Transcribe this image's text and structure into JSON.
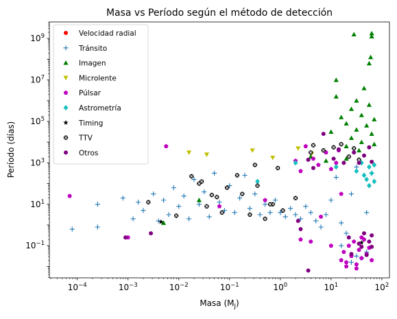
{
  "chart_data": {
    "type": "scatter",
    "title": "Masa vs Período según el método de detección",
    "xlabel": "Masa (M",
    "xlabel_sub": "J",
    "xlabel_close": ")",
    "ylabel": "Período (días)",
    "xscale": "log",
    "yscale": "log",
    "xlim_log10": [
      -4.55,
      2.15
    ],
    "ylim_log10": [
      -2.55,
      9.8
    ],
    "xtick_exponents": [
      -4,
      -3,
      -2,
      -1,
      0,
      1,
      2
    ],
    "ytick_exponents": [
      -1,
      1,
      3,
      5,
      7,
      9
    ],
    "xtick_labels": [
      "10",
      "10",
      "10",
      "10",
      "10",
      "10",
      "10"
    ],
    "xtick_sup": [
      "−4",
      "−3",
      "−2",
      "−1",
      "0",
      "1",
      "2"
    ],
    "ytick_labels": [
      "10",
      "10",
      "10",
      "10",
      "10",
      "10"
    ],
    "ytick_sup": [
      "−1",
      "1",
      "3",
      "5",
      "7",
      "9"
    ],
    "grid": false,
    "legend_position": "upper-left",
    "note": "Point values are given as [log10(mass in Jupiter masses), log10(period in days)]",
    "series": [
      {
        "name": "Velocidad radial",
        "marker": "circle",
        "color": "#ff0000",
        "points": []
      },
      {
        "name": "Tránsito",
        "marker": "plus",
        "color": "#1f77b4",
        "points": [
          [
            -4.1,
            -0.2
          ],
          [
            -3.6,
            -0.1
          ],
          [
            -3.6,
            1.0
          ],
          [
            -3.1,
            1.3
          ],
          [
            -2.9,
            0.3
          ],
          [
            -2.8,
            1.1
          ],
          [
            -2.7,
            0.7
          ],
          [
            -2.5,
            1.5
          ],
          [
            -2.4,
            0.2
          ],
          [
            -2.3,
            1.2
          ],
          [
            -2.2,
            0.5
          ],
          [
            -2.1,
            1.8
          ],
          [
            -2.0,
            0.9
          ],
          [
            -1.9,
            1.4
          ],
          [
            -1.8,
            0.3
          ],
          [
            -1.7,
            2.2
          ],
          [
            -1.6,
            1.0
          ],
          [
            -1.5,
            1.6
          ],
          [
            -1.4,
            0.4
          ],
          [
            -1.3,
            2.5
          ],
          [
            -1.2,
            1.1
          ],
          [
            -1.1,
            0.7
          ],
          [
            -1.0,
            1.9
          ],
          [
            -0.9,
            0.6
          ],
          [
            -0.8,
            1.3
          ],
          [
            -0.7,
            2.4
          ],
          [
            -0.6,
            0.8
          ],
          [
            -0.5,
            1.5
          ],
          [
            -0.4,
            0.5
          ],
          [
            -0.3,
            1.0
          ],
          [
            -0.2,
            0.6
          ],
          [
            -0.1,
            1.2
          ],
          [
            0.0,
            0.6
          ],
          [
            0.1,
            0.4
          ],
          [
            0.2,
            0.8
          ],
          [
            0.3,
            0.5
          ],
          [
            0.4,
            0.3
          ],
          [
            0.5,
            0.9
          ],
          [
            0.6,
            0.6
          ],
          [
            0.7,
            0.2
          ],
          [
            0.8,
            -0.1
          ],
          [
            0.9,
            0.5
          ],
          [
            1.0,
            1.2
          ],
          [
            1.1,
            2.3
          ],
          [
            1.2,
            0.1
          ],
          [
            1.3,
            -0.4
          ],
          [
            1.4,
            1.5
          ],
          [
            1.5,
            2.8
          ],
          [
            1.6,
            -1.6
          ],
          [
            1.7,
            0.6
          ],
          [
            1.4,
            -1.8
          ],
          [
            1.5,
            -1.5
          ],
          [
            1.7,
            -1.3
          ],
          [
            1.2,
            -1.0
          ],
          [
            1.8,
            2.5
          ]
        ]
      },
      {
        "name": "Imagen",
        "marker": "triangle-up",
        "color": "#008000",
        "points": [
          [
            -1.6,
            1.2
          ],
          [
            -2.3,
            0.1
          ],
          [
            1.0,
            4.5
          ],
          [
            1.1,
            6.2
          ],
          [
            1.1,
            7.0
          ],
          [
            1.2,
            5.2
          ],
          [
            1.3,
            3.8
          ],
          [
            1.3,
            4.9
          ],
          [
            1.4,
            5.6
          ],
          [
            1.4,
            4.2
          ],
          [
            1.45,
            9.2
          ],
          [
            1.5,
            6.0
          ],
          [
            1.5,
            4.6
          ],
          [
            1.55,
            3.6
          ],
          [
            1.6,
            5.3
          ],
          [
            1.6,
            4.0
          ],
          [
            1.65,
            6.6
          ],
          [
            1.7,
            4.8
          ],
          [
            1.75,
            5.8
          ],
          [
            1.75,
            7.8
          ],
          [
            1.78,
            8.1
          ],
          [
            1.8,
            9.25
          ],
          [
            1.8,
            9.1
          ],
          [
            1.8,
            4.4
          ],
          [
            1.85,
            5.1
          ],
          [
            1.85,
            3.9
          ],
          [
            0.6,
            3.3
          ],
          [
            0.9,
            3.1
          ],
          [
            1.3,
            3.2
          ]
        ]
      },
      {
        "name": "Microlente",
        "marker": "triangle-down",
        "color": "#bfbf00",
        "points": [
          [
            -1.8,
            3.5
          ],
          [
            -1.45,
            3.4
          ],
          [
            -0.55,
            3.6
          ],
          [
            -0.15,
            3.25
          ],
          [
            0.35,
            3.7
          ],
          [
            0.62,
            3.45
          ]
        ]
      },
      {
        "name": "Púlsar",
        "marker": "pentagon",
        "color": "#bf00bf",
        "points": [
          [
            -4.15,
            1.4
          ],
          [
            -2.25,
            3.8
          ],
          [
            -3.0,
            -0.6
          ],
          [
            0.3,
            3.1
          ],
          [
            0.4,
            2.6
          ],
          [
            0.5,
            3.8
          ],
          [
            0.65,
            3.2
          ],
          [
            0.75,
            2.9
          ],
          [
            0.9,
            3.5
          ],
          [
            1.0,
            2.7
          ],
          [
            1.1,
            3.0
          ],
          [
            1.15,
            3.6
          ],
          [
            1.2,
            -1.7
          ],
          [
            1.25,
            -1.3
          ],
          [
            1.3,
            -1.8
          ],
          [
            1.35,
            -1.0
          ],
          [
            1.4,
            -1.5
          ],
          [
            1.45,
            -0.8
          ],
          [
            1.5,
            -1.9
          ],
          [
            1.55,
            -1.2
          ],
          [
            1.6,
            -1.6
          ],
          [
            1.65,
            -0.7
          ],
          [
            1.7,
            -1.4
          ],
          [
            1.75,
            -1.1
          ],
          [
            1.8,
            -1.7
          ],
          [
            1.3,
            -2.0
          ],
          [
            1.5,
            -2.1
          ],
          [
            1.6,
            -0.6
          ],
          [
            0.4,
            -0.7
          ],
          [
            0.6,
            -0.8
          ],
          [
            0.8,
            0.4
          ],
          [
            -0.3,
            1.2
          ],
          [
            -1.2,
            0.9
          ],
          [
            1.0,
            -1.0
          ],
          [
            1.2,
            1.5
          ]
        ]
      },
      {
        "name": "Astrometría",
        "marker": "diamond",
        "color": "#17bfbf",
        "points": [
          [
            -0.45,
            2.1
          ],
          [
            0.3,
            3.0
          ],
          [
            1.1,
            2.8
          ],
          [
            1.5,
            2.6
          ],
          [
            1.6,
            3.0
          ],
          [
            1.65,
            2.4
          ],
          [
            1.7,
            2.2
          ],
          [
            1.75,
            2.8
          ],
          [
            1.8,
            2.5
          ],
          [
            1.85,
            2.1
          ],
          [
            1.75,
            1.9
          ],
          [
            1.85,
            2.9
          ]
        ]
      },
      {
        "name": "Timing",
        "marker": "star",
        "color": "#000000",
        "points": [
          [
            -2.35,
            0.15
          ],
          [
            1.6,
            -0.85
          ]
        ]
      },
      {
        "name": "TTV",
        "marker": "x-circle",
        "color": "#000000",
        "points": [
          [
            -2.6,
            1.1
          ],
          [
            -2.05,
            0.45
          ],
          [
            -1.75,
            2.35
          ],
          [
            -1.55,
            2.1
          ],
          [
            -1.45,
            0.9
          ],
          [
            -1.35,
            1.45
          ],
          [
            -1.25,
            1.35
          ],
          [
            -1.15,
            0.6
          ],
          [
            -1.05,
            1.8
          ],
          [
            -0.85,
            2.4
          ],
          [
            -0.75,
            1.5
          ],
          [
            -0.6,
            0.5
          ],
          [
            -0.45,
            1.9
          ],
          [
            -0.3,
            0.3
          ],
          [
            -0.15,
            1.0
          ],
          [
            0.05,
            0.7
          ],
          [
            0.3,
            1.3
          ],
          [
            0.65,
            3.85
          ],
          [
            1.05,
            3.75
          ],
          [
            1.2,
            3.9
          ],
          [
            1.35,
            3.3
          ],
          [
            1.45,
            3.7
          ],
          [
            1.55,
            3.15
          ],
          [
            0.6,
            3.5
          ],
          [
            0.85,
            3.6
          ],
          [
            -0.05,
            2.75
          ],
          [
            -0.5,
            2.9
          ],
          [
            -1.6,
            2.0
          ],
          [
            -0.2,
            1.0
          ]
        ]
      },
      {
        "name": "Otros",
        "marker": "circle",
        "color": "#7f007f",
        "points": [
          [
            -3.05,
            -0.6
          ],
          [
            -2.55,
            -0.4
          ],
          [
            0.85,
            4.4
          ],
          [
            1.05,
            3.2
          ],
          [
            1.25,
            3.0
          ],
          [
            1.45,
            3.5
          ],
          [
            1.55,
            3.0
          ],
          [
            1.65,
            3.35
          ],
          [
            1.75,
            3.75
          ],
          [
            1.8,
            3.05
          ],
          [
            0.55,
            3.15
          ],
          [
            0.65,
            2.75
          ],
          [
            0.35,
            0.2
          ],
          [
            0.4,
            -0.2
          ],
          [
            1.35,
            -0.6
          ],
          [
            1.55,
            -0.9
          ],
          [
            1.75,
            -0.8
          ],
          [
            1.8,
            -0.5
          ],
          [
            1.65,
            -0.4
          ],
          [
            1.4,
            -1.4
          ],
          [
            1.6,
            -1.05
          ],
          [
            1.7,
            -1.45
          ],
          [
            1.8,
            -1.05
          ],
          [
            0.55,
            -2.2
          ],
          [
            1.15,
            3.65
          ]
        ]
      }
    ]
  }
}
